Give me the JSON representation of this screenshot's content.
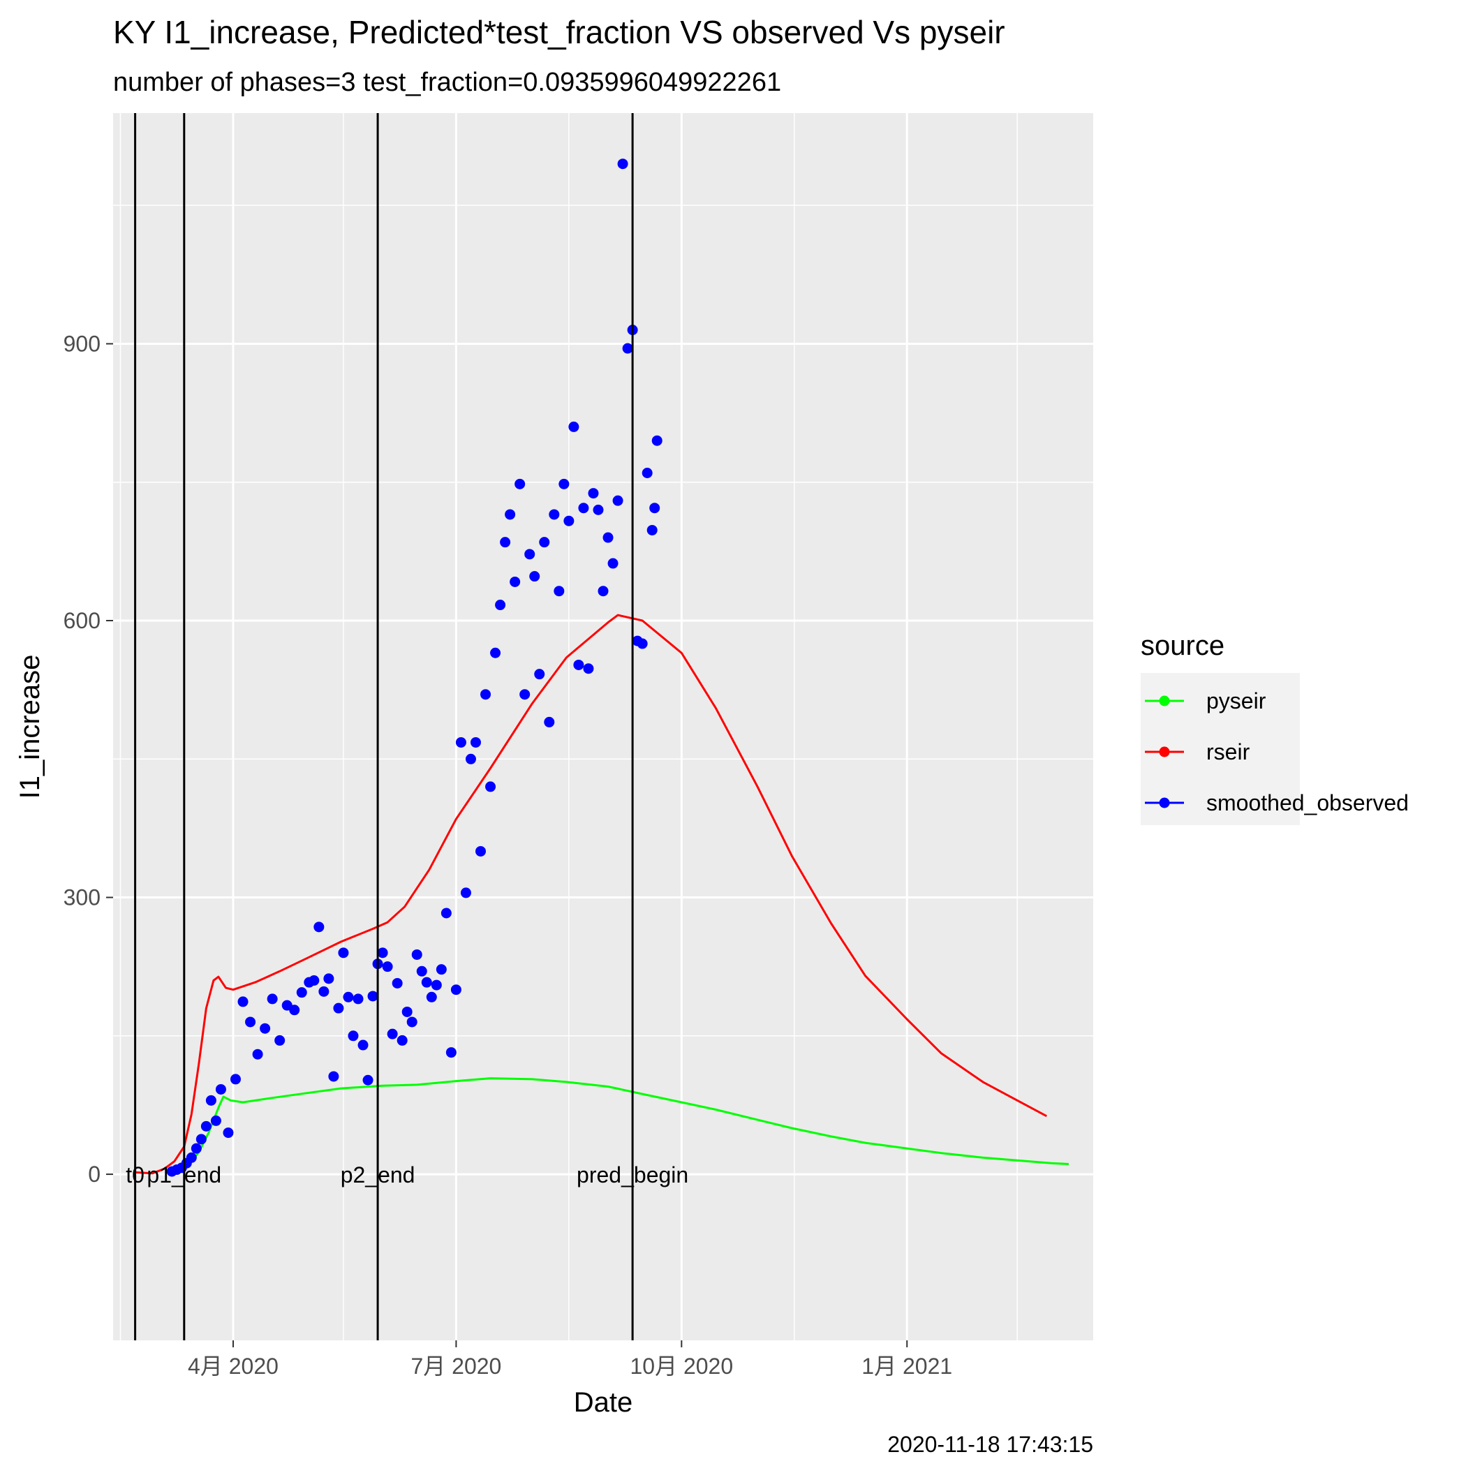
{
  "chart_data": {
    "type": "scatter",
    "title": "KY I1_increase, Predicted*test_fraction VS observed Vs pyseir",
    "subtitle": "number of phases=3   test_fraction=0.0935996049922261",
    "xlabel": "Date",
    "ylabel": "I1_increase",
    "caption": "2020-11-18 17:43:15",
    "x_range": [
      "2020-02-12",
      "2021-03-18"
    ],
    "ylim": [
      -180,
      1150
    ],
    "x_ticks": [
      {
        "date": "2020-04-01",
        "label": "4月 2020"
      },
      {
        "date": "2020-07-01",
        "label": "7月 2020"
      },
      {
        "date": "2020-10-01",
        "label": "10月 2020"
      },
      {
        "date": "2021-01-01",
        "label": "1月 2021"
      }
    ],
    "x_minor_ticks": [
      "2020-02-15",
      "2020-05-16",
      "2020-08-16",
      "2020-11-16",
      "2021-02-15"
    ],
    "y_ticks": [
      0,
      300,
      600,
      900
    ],
    "y_minor_ticks": [
      150,
      450,
      750,
      1050
    ],
    "grid": true,
    "legend": {
      "title": "source",
      "position": "right"
    },
    "vlines": [
      {
        "date": "2020-02-21",
        "label": "t0"
      },
      {
        "date": "2020-03-12",
        "label": "p1_end"
      },
      {
        "date": "2020-05-30",
        "label": "p2_end"
      },
      {
        "date": "2020-09-11",
        "label": "pred_begin"
      }
    ],
    "series": [
      {
        "name": "pyseir",
        "kind": "line",
        "color": "#00ff00",
        "points": [
          [
            "2020-03-06",
            2
          ],
          [
            "2020-03-10",
            4
          ],
          [
            "2020-03-14",
            10
          ],
          [
            "2020-03-18",
            24
          ],
          [
            "2020-03-22",
            45
          ],
          [
            "2020-03-26",
            72
          ],
          [
            "2020-03-28",
            84
          ],
          [
            "2020-03-31",
            80
          ],
          [
            "2020-04-05",
            78
          ],
          [
            "2020-04-15",
            82
          ],
          [
            "2020-05-01",
            88
          ],
          [
            "2020-05-15",
            93
          ],
          [
            "2020-06-01",
            96
          ],
          [
            "2020-06-15",
            97
          ],
          [
            "2020-07-01",
            101
          ],
          [
            "2020-07-15",
            104
          ],
          [
            "2020-08-01",
            103
          ],
          [
            "2020-08-15",
            100
          ],
          [
            "2020-09-01",
            95
          ],
          [
            "2020-09-15",
            87
          ],
          [
            "2020-10-01",
            78
          ],
          [
            "2020-10-15",
            70
          ],
          [
            "2020-11-01",
            59
          ],
          [
            "2020-11-15",
            50
          ],
          [
            "2020-12-01",
            41
          ],
          [
            "2020-12-15",
            34
          ],
          [
            "2021-01-01",
            28
          ],
          [
            "2021-01-15",
            23
          ],
          [
            "2021-02-01",
            18
          ],
          [
            "2021-02-15",
            15
          ],
          [
            "2021-03-01",
            12
          ],
          [
            "2021-03-08",
            11
          ]
        ]
      },
      {
        "name": "rseir",
        "kind": "line",
        "color": "#ff0000",
        "points": [
          [
            "2020-02-21",
            2
          ],
          [
            "2020-02-28",
            1
          ],
          [
            "2020-03-04",
            6
          ],
          [
            "2020-03-08",
            14
          ],
          [
            "2020-03-12",
            30
          ],
          [
            "2020-03-15",
            65
          ],
          [
            "2020-03-18",
            120
          ],
          [
            "2020-03-21",
            180
          ],
          [
            "2020-03-24",
            210
          ],
          [
            "2020-03-26",
            214
          ],
          [
            "2020-03-29",
            202
          ],
          [
            "2020-04-01",
            200
          ],
          [
            "2020-04-10",
            208
          ],
          [
            "2020-04-20",
            220
          ],
          [
            "2020-05-01",
            234
          ],
          [
            "2020-05-15",
            252
          ],
          [
            "2020-05-28",
            266
          ],
          [
            "2020-06-03",
            273
          ],
          [
            "2020-06-10",
            290
          ],
          [
            "2020-06-20",
            330
          ],
          [
            "2020-07-01",
            385
          ],
          [
            "2020-07-15",
            440
          ],
          [
            "2020-08-01",
            510
          ],
          [
            "2020-08-15",
            560
          ],
          [
            "2020-09-01",
            598
          ],
          [
            "2020-09-05",
            606
          ],
          [
            "2020-09-15",
            600
          ],
          [
            "2020-10-01",
            565
          ],
          [
            "2020-10-15",
            505
          ],
          [
            "2020-11-01",
            420
          ],
          [
            "2020-11-15",
            345
          ],
          [
            "2020-12-01",
            272
          ],
          [
            "2020-12-15",
            215
          ],
          [
            "2021-01-01",
            168
          ],
          [
            "2021-01-15",
            131
          ],
          [
            "2021-02-01",
            100
          ],
          [
            "2021-02-15",
            80
          ],
          [
            "2021-02-27",
            63
          ]
        ]
      },
      {
        "name": "smoothed_observed",
        "kind": "scatter",
        "color": "#0000ff",
        "points": [
          [
            "2020-03-07",
            3
          ],
          [
            "2020-03-09",
            5
          ],
          [
            "2020-03-11",
            7
          ],
          [
            "2020-03-13",
            12
          ],
          [
            "2020-03-15",
            18
          ],
          [
            "2020-03-17",
            28
          ],
          [
            "2020-03-19",
            38
          ],
          [
            "2020-03-21",
            52
          ],
          [
            "2020-03-23",
            80
          ],
          [
            "2020-03-25",
            58
          ],
          [
            "2020-03-27",
            92
          ],
          [
            "2020-03-30",
            45
          ],
          [
            "2020-04-02",
            103
          ],
          [
            "2020-04-05",
            187
          ],
          [
            "2020-04-08",
            165
          ],
          [
            "2020-04-11",
            130
          ],
          [
            "2020-04-14",
            158
          ],
          [
            "2020-04-17",
            190
          ],
          [
            "2020-04-20",
            145
          ],
          [
            "2020-04-23",
            183
          ],
          [
            "2020-04-26",
            178
          ],
          [
            "2020-04-29",
            197
          ],
          [
            "2020-05-02",
            208
          ],
          [
            "2020-05-04",
            210
          ],
          [
            "2020-05-06",
            268
          ],
          [
            "2020-05-08",
            198
          ],
          [
            "2020-05-10",
            212
          ],
          [
            "2020-05-12",
            106
          ],
          [
            "2020-05-14",
            180
          ],
          [
            "2020-05-16",
            240
          ],
          [
            "2020-05-18",
            192
          ],
          [
            "2020-05-20",
            150
          ],
          [
            "2020-05-22",
            190
          ],
          [
            "2020-05-24",
            140
          ],
          [
            "2020-05-26",
            102
          ],
          [
            "2020-05-28",
            193
          ],
          [
            "2020-05-30",
            228
          ],
          [
            "2020-06-01",
            240
          ],
          [
            "2020-06-03",
            225
          ],
          [
            "2020-06-05",
            152
          ],
          [
            "2020-06-07",
            207
          ],
          [
            "2020-06-09",
            145
          ],
          [
            "2020-06-11",
            176
          ],
          [
            "2020-06-13",
            165
          ],
          [
            "2020-06-15",
            238
          ],
          [
            "2020-06-17",
            220
          ],
          [
            "2020-06-19",
            208
          ],
          [
            "2020-06-21",
            192
          ],
          [
            "2020-06-23",
            205
          ],
          [
            "2020-06-25",
            222
          ],
          [
            "2020-06-27",
            283
          ],
          [
            "2020-06-29",
            132
          ],
          [
            "2020-07-01",
            200
          ],
          [
            "2020-07-03",
            468
          ],
          [
            "2020-07-05",
            305
          ],
          [
            "2020-07-07",
            450
          ],
          [
            "2020-07-09",
            468
          ],
          [
            "2020-07-11",
            350
          ],
          [
            "2020-07-13",
            520
          ],
          [
            "2020-07-15",
            420
          ],
          [
            "2020-07-17",
            565
          ],
          [
            "2020-07-19",
            617
          ],
          [
            "2020-07-21",
            685
          ],
          [
            "2020-07-23",
            715
          ],
          [
            "2020-07-25",
            642
          ],
          [
            "2020-07-27",
            748
          ],
          [
            "2020-07-29",
            520
          ],
          [
            "2020-07-31",
            672
          ],
          [
            "2020-08-02",
            648
          ],
          [
            "2020-08-04",
            542
          ],
          [
            "2020-08-06",
            685
          ],
          [
            "2020-08-08",
            490
          ],
          [
            "2020-08-10",
            715
          ],
          [
            "2020-08-12",
            632
          ],
          [
            "2020-08-14",
            748
          ],
          [
            "2020-08-16",
            708
          ],
          [
            "2020-08-18",
            810
          ],
          [
            "2020-08-20",
            552
          ],
          [
            "2020-08-22",
            722
          ],
          [
            "2020-08-24",
            548
          ],
          [
            "2020-08-26",
            738
          ],
          [
            "2020-08-28",
            720
          ],
          [
            "2020-08-30",
            632
          ],
          [
            "2020-09-01",
            690
          ],
          [
            "2020-09-03",
            662
          ],
          [
            "2020-09-05",
            730
          ],
          [
            "2020-09-07",
            1095
          ],
          [
            "2020-09-09",
            895
          ],
          [
            "2020-09-11",
            915
          ],
          [
            "2020-09-13",
            578
          ],
          [
            "2020-09-15",
            575
          ],
          [
            "2020-09-17",
            760
          ],
          [
            "2020-09-19",
            698
          ],
          [
            "2020-09-20",
            722
          ],
          [
            "2020-09-21",
            795
          ]
        ]
      }
    ]
  }
}
